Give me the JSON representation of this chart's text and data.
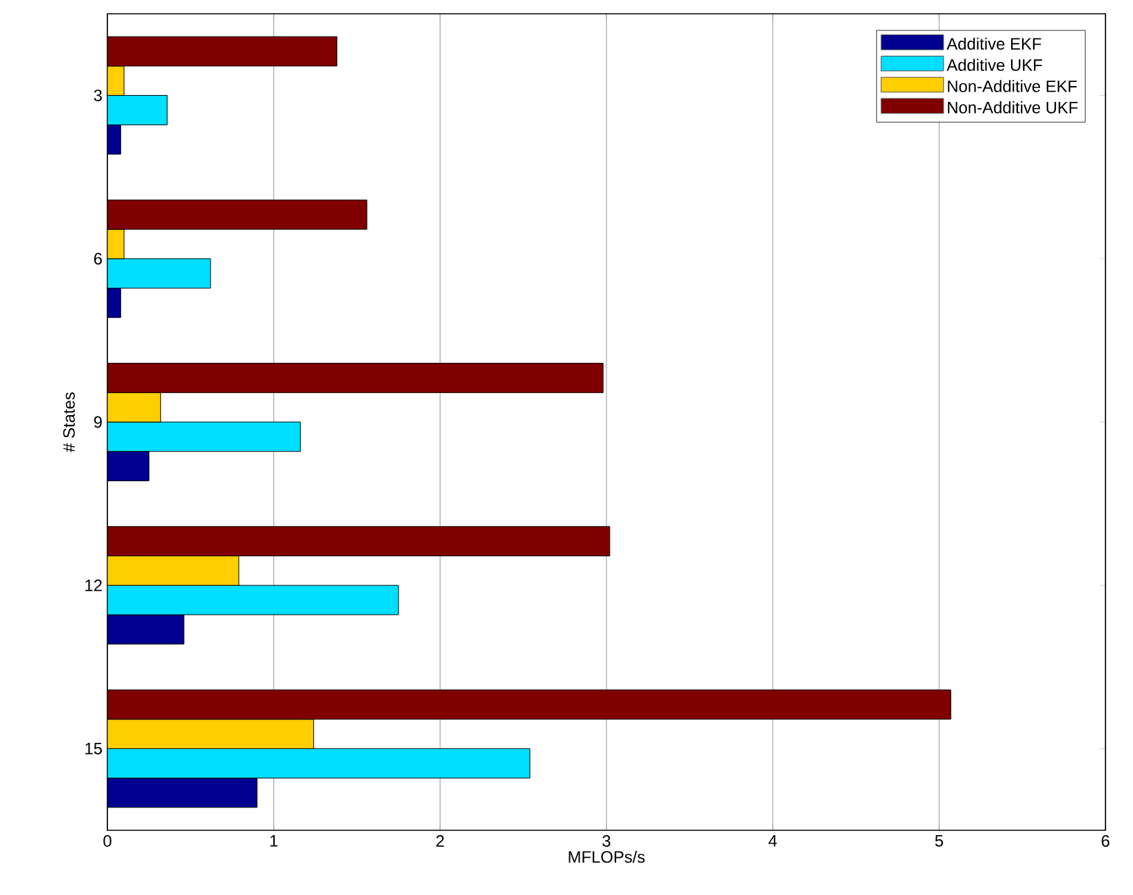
{
  "chart_data": {
    "type": "bar",
    "orientation": "horizontal",
    "xlabel": "MFLOPs/s",
    "ylabel": "# States",
    "categories": [
      "3",
      "6",
      "9",
      "12",
      "15"
    ],
    "series": [
      {
        "name": "Additive EKF",
        "color": "#000090",
        "values": [
          0.08,
          0.08,
          0.25,
          0.46,
          0.9
        ]
      },
      {
        "name": "Additive UKF",
        "color": "#00dfff",
        "values": [
          0.36,
          0.62,
          1.16,
          1.75,
          2.54
        ]
      },
      {
        "name": "Non-Additive EKF",
        "color": "#ffcf00",
        "values": [
          0.1,
          0.1,
          0.32,
          0.79,
          1.24
        ]
      },
      {
        "name": "Non-Additive UKF",
        "color": "#800000",
        "values": [
          1.38,
          1.56,
          2.98,
          3.02,
          5.07
        ]
      }
    ],
    "xlim": [
      0,
      6
    ],
    "xticks": [
      0,
      1,
      2,
      3,
      4,
      5,
      6
    ],
    "grid": "x",
    "legend": "top right"
  }
}
